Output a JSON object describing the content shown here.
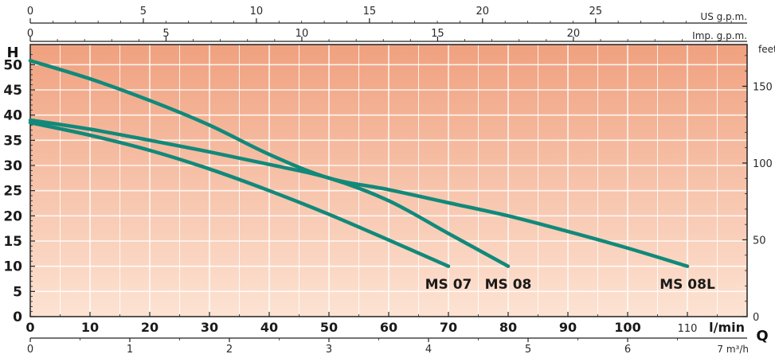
{
  "chart_data": {
    "type": "line",
    "ylabel": "H",
    "xlabel": "Q",
    "x_unit": "l/min",
    "y_right_unit": "feet",
    "x_ticks": [
      0,
      10,
      20,
      30,
      40,
      50,
      60,
      70,
      80,
      90,
      100,
      110
    ],
    "y_ticks": [
      0,
      5,
      10,
      15,
      20,
      25,
      30,
      35,
      40,
      45,
      50
    ],
    "y_right_ticks": [
      0,
      50,
      100,
      150
    ],
    "top_axis_us": {
      "unit": "US g.p.m.",
      "ticks": [
        0,
        5,
        10,
        15,
        20,
        25
      ]
    },
    "top_axis_imp": {
      "unit": "Imp. g.p.m.",
      "ticks": [
        0,
        5,
        10,
        15,
        20
      ]
    },
    "bottom_axis_m3h": {
      "unit": "7 m³/h",
      "ticks": [
        "0",
        "1",
        "2",
        "3",
        "4",
        "5",
        "6"
      ]
    },
    "xlim": [
      0,
      120
    ],
    "ylim": [
      0,
      54
    ],
    "grid": true,
    "colors": {
      "curve": "#11897a",
      "bg_top": "#f0a17f",
      "bg_bottom": "#fde3d3"
    },
    "series": [
      {
        "name": "MS 07",
        "x": [
          0,
          10,
          20,
          30,
          40,
          50,
          60,
          70
        ],
        "y": [
          38.5,
          36,
          33,
          29.3,
          25,
          20.3,
          15.2,
          10
        ]
      },
      {
        "name": "MS 08",
        "x": [
          0,
          10,
          20,
          30,
          40,
          50,
          60,
          70,
          80
        ],
        "y": [
          39,
          37.2,
          35,
          32.7,
          30.2,
          27.5,
          23,
          16.5,
          10
        ]
      },
      {
        "name": "MS 08L",
        "x": [
          0,
          10,
          20,
          30,
          40,
          50,
          60,
          70,
          80,
          90,
          100,
          110
        ],
        "y": [
          50.8,
          47.2,
          42.9,
          38,
          32.2,
          27.5,
          25.2,
          22.6,
          20,
          16.9,
          13.6,
          10
        ]
      }
    ]
  }
}
